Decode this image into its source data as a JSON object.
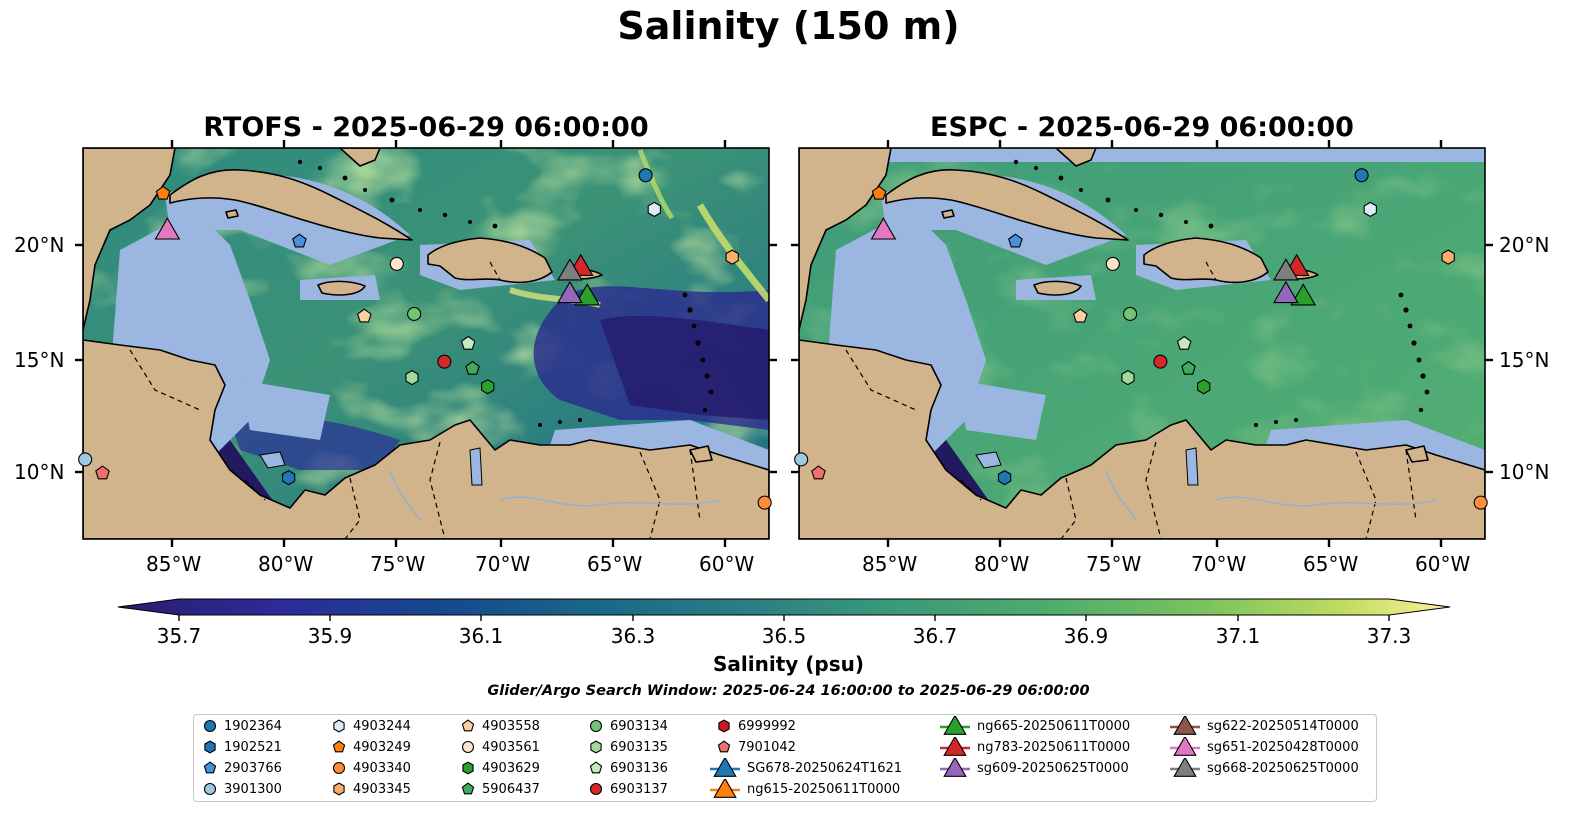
{
  "suptitle": "Salinity (150 m)",
  "panels": [
    {
      "title": "RTOFS - 2025-06-29 06:00:00"
    },
    {
      "title": "ESPC - 2025-06-29 06:00:00"
    }
  ],
  "map": {
    "lon_range": [
      -89.5,
      -57.8
    ],
    "lat_range": [
      7.0,
      24.2
    ],
    "lon_ticks": [
      "85°W",
      "80°W",
      "75°W",
      "70°W",
      "65°W",
      "60°W"
    ],
    "lat_ticks": [
      "20°N",
      "15°N",
      "10°N"
    ],
    "colors": {
      "ocean_shallow": "#9bb6e0",
      "land": "#d2b48c",
      "coast": "#000000"
    }
  },
  "colorbar": {
    "label": "Salinity (psu)",
    "ticks": [
      "35.7",
      "35.9",
      "36.1",
      "36.3",
      "36.5",
      "36.7",
      "36.9",
      "37.1",
      "37.3"
    ],
    "range": [
      35.6,
      37.4
    ],
    "colormap": "haline"
  },
  "search_window": "Glider/Argo Search Window: 2025-06-24 16:00:00 to 2025-06-29 06:00:00",
  "legend": {
    "floats": [
      {
        "id": "1902364",
        "color": "#1f77b4",
        "shape": "circle"
      },
      {
        "id": "1902521",
        "color": "#1f77b4",
        "shape": "hexagon"
      },
      {
        "id": "2903766",
        "color": "#4a90d9",
        "shape": "pentagon"
      },
      {
        "id": "3901300",
        "color": "#9ecae1",
        "shape": "circle"
      },
      {
        "id": "4903244",
        "color": "#deebf7",
        "shape": "hexagon"
      },
      {
        "id": "4903249",
        "color": "#ff7f0e",
        "shape": "pentagon"
      },
      {
        "id": "4903340",
        "color": "#fd8d3c",
        "shape": "circle"
      },
      {
        "id": "4903345",
        "color": "#fdae6b",
        "shape": "hexagon"
      },
      {
        "id": "4903558",
        "color": "#fdd0a2",
        "shape": "pentagon"
      },
      {
        "id": "4903561",
        "color": "#fee6ce",
        "shape": "circle"
      },
      {
        "id": "4903629",
        "color": "#2ca02c",
        "shape": "hexagon"
      },
      {
        "id": "5906437",
        "color": "#41ab5d",
        "shape": "pentagon"
      },
      {
        "id": "6903134",
        "color": "#74c476",
        "shape": "circle"
      },
      {
        "id": "6903135",
        "color": "#a1d99b",
        "shape": "hexagon"
      },
      {
        "id": "6903136",
        "color": "#c7e9c0",
        "shape": "pentagon"
      },
      {
        "id": "6903137",
        "color": "#d62728",
        "shape": "circle"
      },
      {
        "id": "6999992",
        "color": "#cb181d",
        "shape": "hexagon"
      },
      {
        "id": "7901042",
        "color": "#ef6f6c",
        "shape": "pentagon"
      }
    ],
    "gliders": [
      {
        "id": "SG678-20250624T1621",
        "color": "#1f77b4"
      },
      {
        "id": "ng615-20250611T0000",
        "color": "#ff7f0e"
      },
      {
        "id": "ng665-20250611T0000",
        "color": "#2ca02c"
      },
      {
        "id": "ng783-20250611T0000",
        "color": "#d62728"
      },
      {
        "id": "sg609-20250625T0000",
        "color": "#9467bd"
      },
      {
        "id": "sg622-20250514T0000",
        "color": "#8c564b"
      },
      {
        "id": "sg651-20250428T0000",
        "color": "#e377c2"
      },
      {
        "id": "sg668-20250625T0000",
        "color": "#7f7f7f"
      }
    ]
  },
  "observations": {
    "floats": [
      {
        "id": "1902364",
        "lon": -63.5,
        "lat": 23.0
      },
      {
        "id": "4903244",
        "lon": -63.1,
        "lat": 21.5
      },
      {
        "id": "4903249",
        "lon": -85.8,
        "lat": 22.2
      },
      {
        "id": "2903766",
        "lon": -79.5,
        "lat": 20.1
      },
      {
        "id": "4903561",
        "lon": -75.0,
        "lat": 19.1
      },
      {
        "id": "4903345",
        "lon": -59.5,
        "lat": 19.4
      },
      {
        "id": "4903558",
        "lon": -76.5,
        "lat": 16.8
      },
      {
        "id": "6903134",
        "lon": -74.2,
        "lat": 16.9
      },
      {
        "id": "6903136",
        "lon": -71.7,
        "lat": 15.6
      },
      {
        "id": "6903137",
        "lon": -72.8,
        "lat": 14.8
      },
      {
        "id": "6903135",
        "lon": -74.3,
        "lat": 14.1
      },
      {
        "id": "5906437",
        "lon": -71.5,
        "lat": 14.5
      },
      {
        "id": "4903629",
        "lon": -70.8,
        "lat": 13.7
      },
      {
        "id": "1902521",
        "lon": -80.0,
        "lat": 9.7
      },
      {
        "id": "3901300",
        "lon": -89.4,
        "lat": 10.5
      },
      {
        "id": "7901042",
        "lon": -88.6,
        "lat": 9.9
      },
      {
        "id": "4903340",
        "lon": -58.0,
        "lat": 8.6
      }
    ],
    "gliders": [
      {
        "id": "sg651-20250428T0000",
        "lon": -85.6,
        "lat": 20.5
      },
      {
        "id": "ng783-20250611T0000",
        "lon": -66.5,
        "lat": 18.9
      },
      {
        "id": "sg668-20250625T0000",
        "lon": -67.0,
        "lat": 18.7
      },
      {
        "id": "ng665-20250611T0000",
        "lon": -66.2,
        "lat": 17.6
      },
      {
        "id": "sg609-20250625T0000",
        "lon": -67.0,
        "lat": 17.7
      }
    ]
  }
}
